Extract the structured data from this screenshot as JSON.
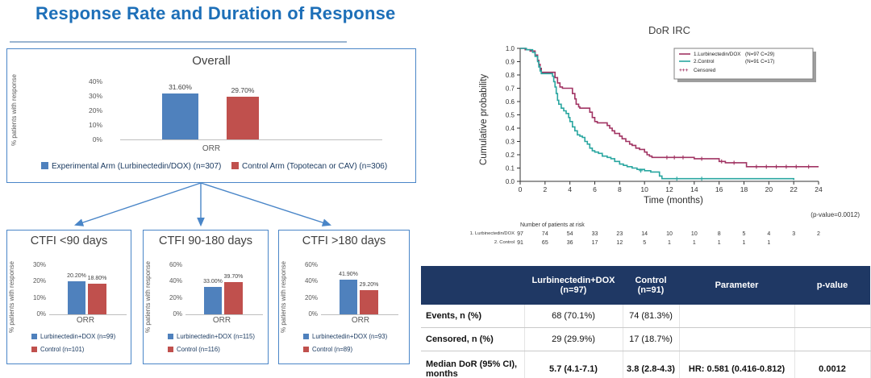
{
  "title": "Response Rate and Duration of Response",
  "colors": {
    "title_blue": "#1d6fb8",
    "panel_border": "#4a86c8",
    "bar_blue": "#4F81BD",
    "bar_red": "#C0504D",
    "km_red": "#A13463",
    "km_teal": "#29A6A0",
    "table_header_bg": "#1F3864"
  },
  "chart_data": [
    {
      "id": "overall",
      "type": "bar",
      "title": "Overall",
      "ylabel": "% patients with response",
      "xlabel": "ORR",
      "ymax": 40,
      "yticks": [
        "40%",
        "30%",
        "20%",
        "10%",
        "0%"
      ],
      "ytick_values": [
        40,
        30,
        20,
        10,
        0
      ],
      "bars": [
        {
          "name": "experimental",
          "value": 31.6,
          "value_label": "31.60%",
          "color": "#4F81BD"
        },
        {
          "name": "control",
          "value": 29.7,
          "value_label": "29.70%",
          "color": "#C0504D"
        }
      ],
      "legend": [
        {
          "label": "Experimental Arm (Lurbinectedin/DOX) (n=307)",
          "color": "#4F81BD"
        },
        {
          "label": "Control Arm (Topotecan or CAV) (n=306)",
          "color": "#C0504D"
        }
      ]
    },
    {
      "id": "ctfi_lt90",
      "type": "bar",
      "title": "CTFI <90 days",
      "ylabel": "% patients with response",
      "xlabel": "ORR",
      "ymax": 30,
      "yticks": [
        "30%",
        "20%",
        "10%",
        "0%"
      ],
      "ytick_values": [
        30,
        20,
        10,
        0
      ],
      "bars": [
        {
          "name": "experimental",
          "value": 20.2,
          "value_label": "20.20%",
          "color": "#4F81BD"
        },
        {
          "name": "control",
          "value": 18.8,
          "value_label": "18.80%",
          "color": "#C0504D"
        }
      ],
      "legend": [
        {
          "label": "Lurbinectedin+DOX (n=99)",
          "color": "#4F81BD"
        },
        {
          "label": "Control (n=101)",
          "color": "#C0504D"
        }
      ]
    },
    {
      "id": "ctfi_90_180",
      "type": "bar",
      "title": "CTFI 90-180 days",
      "ylabel": "% patients with response",
      "xlabel": "ORR",
      "ymax": 60,
      "yticks": [
        "60%",
        "40%",
        "20%",
        "0%"
      ],
      "ytick_values": [
        60,
        40,
        20,
        0
      ],
      "bars": [
        {
          "name": "experimental",
          "value": 33.0,
          "value_label": "33.00%",
          "color": "#4F81BD"
        },
        {
          "name": "control",
          "value": 39.7,
          "value_label": "39.70%",
          "color": "#C0504D"
        }
      ],
      "legend": [
        {
          "label": "Lurbinectedin+DOX (n=115)",
          "color": "#4F81BD"
        },
        {
          "label": "Control (n=116)",
          "color": "#C0504D"
        }
      ]
    },
    {
      "id": "ctfi_gt180",
      "type": "bar",
      "title": "CTFI >180 days",
      "ylabel": "% patients with response",
      "xlabel": "ORR",
      "ymax": 60,
      "yticks": [
        "60%",
        "40%",
        "20%",
        "0%"
      ],
      "ytick_values": [
        60,
        40,
        20,
        0
      ],
      "bars": [
        {
          "name": "experimental",
          "value": 41.9,
          "value_label": "41.90%",
          "color": "#4F81BD"
        },
        {
          "name": "control",
          "value": 29.2,
          "value_label": "29.20%",
          "color": "#C0504D"
        }
      ],
      "legend": [
        {
          "label": "Lurbinectedin+DOX (n=93)",
          "color": "#4F81BD"
        },
        {
          "label": "Control (n=89)",
          "color": "#C0504D"
        }
      ]
    },
    {
      "id": "dor_irc",
      "type": "line",
      "title": "DoR IRC",
      "xlabel": "Time (months)",
      "ylabel": "Cumulative probability",
      "xlim": [
        0,
        24
      ],
      "ylim": [
        0.0,
        1.0
      ],
      "xticks": [
        0,
        2,
        4,
        6,
        8,
        10,
        12,
        14,
        16,
        18,
        20,
        22,
        24
      ],
      "yticks": [
        1.0,
        0.9,
        0.8,
        0.7,
        0.6,
        0.5,
        0.4,
        0.3,
        0.2,
        0.1,
        0.0
      ],
      "legend_position": "upper right",
      "censored_label": "Censored",
      "pvalue_note": "(p-value=0.0012)",
      "series": [
        {
          "name": "1.Lurbinectedin/DOX",
          "counts": "(N=97 C=29)",
          "color": "#A13463",
          "steps": [
            [
              0,
              1.0
            ],
            [
              0.4,
              0.99
            ],
            [
              0.8,
              0.98
            ],
            [
              1.2,
              0.95
            ],
            [
              1.4,
              0.91
            ],
            [
              1.5,
              0.88
            ],
            [
              1.6,
              0.85
            ],
            [
              1.7,
              0.82
            ],
            [
              2.8,
              0.78
            ],
            [
              3.0,
              0.74
            ],
            [
              3.2,
              0.71
            ],
            [
              3.4,
              0.7
            ],
            [
              4.2,
              0.66
            ],
            [
              4.4,
              0.62
            ],
            [
              4.5,
              0.58
            ],
            [
              4.7,
              0.56
            ],
            [
              4.8,
              0.55
            ],
            [
              5.6,
              0.52
            ],
            [
              5.8,
              0.48
            ],
            [
              6.0,
              0.45
            ],
            [
              6.2,
              0.44
            ],
            [
              7.0,
              0.42
            ],
            [
              7.2,
              0.4
            ],
            [
              7.4,
              0.38
            ],
            [
              7.6,
              0.36
            ],
            [
              8.0,
              0.34
            ],
            [
              8.2,
              0.32
            ],
            [
              8.5,
              0.3
            ],
            [
              8.8,
              0.28
            ],
            [
              9.0,
              0.27
            ],
            [
              9.3,
              0.25
            ],
            [
              9.6,
              0.24
            ],
            [
              10.0,
              0.22
            ],
            [
              10.2,
              0.2
            ],
            [
              10.4,
              0.19
            ],
            [
              10.6,
              0.18
            ],
            [
              14.0,
              0.17
            ],
            [
              16.0,
              0.15
            ],
            [
              16.5,
              0.14
            ],
            [
              18.2,
              0.11
            ],
            [
              24,
              0.11
            ]
          ],
          "censored": [
            [
              11.8,
              0.18
            ],
            [
              12.4,
              0.18
            ],
            [
              13.1,
              0.18
            ],
            [
              14.6,
              0.17
            ],
            [
              16.2,
              0.15
            ],
            [
              17.2,
              0.14
            ],
            [
              19.0,
              0.11
            ],
            [
              19.8,
              0.11
            ],
            [
              20.6,
              0.11
            ],
            [
              21.4,
              0.11
            ],
            [
              22.2,
              0.11
            ],
            [
              23.2,
              0.11
            ]
          ]
        },
        {
          "name": "2.Control",
          "counts": "(N=91 C=17)",
          "color": "#29A6A0",
          "steps": [
            [
              0,
              1.0
            ],
            [
              0.5,
              0.99
            ],
            [
              1.0,
              0.97
            ],
            [
              1.2,
              0.94
            ],
            [
              1.4,
              0.9
            ],
            [
              1.5,
              0.86
            ],
            [
              1.6,
              0.83
            ],
            [
              1.7,
              0.81
            ],
            [
              2.6,
              0.79
            ],
            [
              2.7,
              0.75
            ],
            [
              2.8,
              0.71
            ],
            [
              2.9,
              0.66
            ],
            [
              3.0,
              0.61
            ],
            [
              3.1,
              0.58
            ],
            [
              3.3,
              0.55
            ],
            [
              3.5,
              0.53
            ],
            [
              3.7,
              0.51
            ],
            [
              3.9,
              0.48
            ],
            [
              4.0,
              0.45
            ],
            [
              4.2,
              0.41
            ],
            [
              4.4,
              0.38
            ],
            [
              4.6,
              0.35
            ],
            [
              4.8,
              0.34
            ],
            [
              5.0,
              0.33
            ],
            [
              5.2,
              0.3
            ],
            [
              5.4,
              0.28
            ],
            [
              5.6,
              0.25
            ],
            [
              5.8,
              0.23
            ],
            [
              6.0,
              0.22
            ],
            [
              6.3,
              0.21
            ],
            [
              6.6,
              0.19
            ],
            [
              7.0,
              0.18
            ],
            [
              7.3,
              0.17
            ],
            [
              7.6,
              0.15
            ],
            [
              8.0,
              0.13
            ],
            [
              8.3,
              0.12
            ],
            [
              8.6,
              0.11
            ],
            [
              9.0,
              0.1
            ],
            [
              9.4,
              0.09
            ],
            [
              10.0,
              0.08
            ],
            [
              10.5,
              0.07
            ],
            [
              11.2,
              0.04
            ],
            [
              11.4,
              0.02
            ],
            [
              22.0,
              0.01
            ]
          ],
          "censored": [
            [
              9.7,
              0.08
            ],
            [
              12.6,
              0.02
            ],
            [
              14.6,
              0.02
            ]
          ]
        }
      ],
      "at_risk": {
        "title": "Number of patients at risk",
        "rows": [
          {
            "label": "1. Lurbinectedin/DOX",
            "values": [
              97,
              74,
              54,
              33,
              23,
              14,
              10,
              10,
              8,
              5,
              4,
              3,
              2
            ]
          },
          {
            "label": "2. Control",
            "values": [
              91,
              65,
              36,
              17,
              12,
              5,
              1,
              1,
              1,
              1,
              1
            ]
          }
        ]
      }
    }
  ],
  "summary_table": {
    "headers": [
      {
        "line1": "",
        "line2": ""
      },
      {
        "line1": "Lurbinectedin+DOX",
        "line2": "(n=97)"
      },
      {
        "line1": "Control",
        "line2": "(n=91)"
      },
      {
        "line1": "Parameter",
        "line2": ""
      },
      {
        "line1": "p-value",
        "line2": ""
      }
    ],
    "rows": [
      [
        "Events, n (%)",
        "68 (70.1%)",
        "74 (81.3%)",
        "",
        ""
      ],
      [
        "Censored, n (%)",
        "29 (29.9%)",
        "17 (18.7%)",
        "",
        ""
      ],
      [
        "Median DoR (95% CI), months",
        "5.7 (4.1-7.1)",
        "3.8 (2.8-4.3)",
        "HR: 0.581 (0.416-0.812)",
        "0.0012"
      ]
    ]
  }
}
